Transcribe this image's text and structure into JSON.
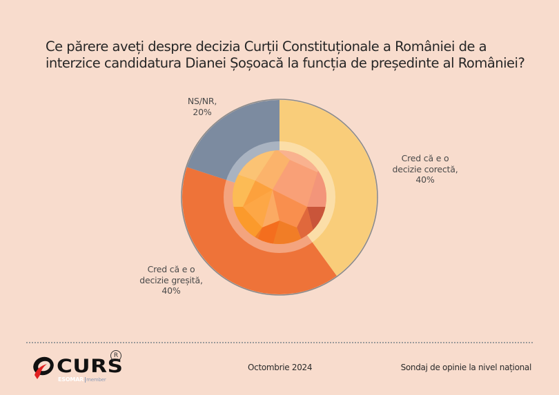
{
  "title": {
    "line1": "Ce părere aveți despre decizia Curții Constituționale a României de a",
    "line2": "interzice candidatura Dianei Șoșoacă la funcția de președinte al României?"
  },
  "labels": {
    "correct": {
      "line1": "Cred că e o",
      "line2": "decizie corectă,",
      "line3": "40%"
    },
    "wrong": {
      "line1": "Cred că e o",
      "line2": "decizie greșită,",
      "line3": "40%"
    },
    "nsnr": {
      "line1": "NS/NR,",
      "line2": "20%"
    }
  },
  "colors": {
    "background": "#f8dccd",
    "correct": "#f9cd7a",
    "wrong": "#ee7339",
    "nsnr": "#7c8ba0"
  },
  "footer": {
    "logo_text": "CURS",
    "logo_reg": "R",
    "logo_esomar": "ESOMAR",
    "logo_member": "member",
    "date": "Octombrie 2024",
    "survey": "Sondaj de opinie la nivel național"
  },
  "chart_data": {
    "type": "pie",
    "subtype": "donut",
    "title": "Ce părere aveți despre decizia Curții Constituționale a României de a interzice candidatura Dianei Șoșoacă la funcția de președinte al României?",
    "categories": [
      "Cred că e o decizie corectă",
      "Cred că e o decizie greșită",
      "NS/NR"
    ],
    "values": [
      40,
      40,
      20
    ],
    "unit": "%",
    "colors": [
      "#f9cd7a",
      "#ee7339",
      "#7c8ba0"
    ],
    "start_angle": "12 o'clock, clockwise",
    "legend": "none (direct data labels)"
  }
}
